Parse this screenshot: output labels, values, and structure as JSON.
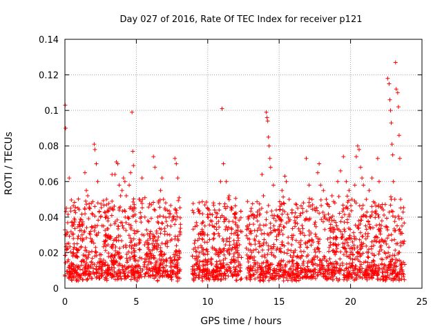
{
  "chart_data": {
    "type": "scatter",
    "title": "Day 027 of 2016, Rate Of TEC Index for receiver p121",
    "xlabel": "GPS time / hours",
    "ylabel": "ROTI / TECUs",
    "xlim": [
      0,
      25
    ],
    "ylim": [
      0,
      0.14
    ],
    "grid": true,
    "marker": "+",
    "color": "#ff0000",
    "xticks": [
      {
        "value": 0,
        "label": "0"
      },
      {
        "value": 5,
        "label": "5"
      },
      {
        "value": 10,
        "label": "10"
      },
      {
        "value": 15,
        "label": "15"
      },
      {
        "value": 20,
        "label": "20"
      },
      {
        "value": 25,
        "label": "25"
      }
    ],
    "yticks": [
      {
        "value": 0,
        "label": "0"
      },
      {
        "value": 0.02,
        "label": "0.02"
      },
      {
        "value": 0.04,
        "label": "0.04"
      },
      {
        "value": 0.06,
        "label": "0.06"
      },
      {
        "value": 0.08,
        "label": "0.08"
      },
      {
        "value": 0.1,
        "label": "0.1"
      },
      {
        "value": 0.12,
        "label": "0.12"
      },
      {
        "value": 0.14,
        "label": "0.14"
      }
    ],
    "data_gaps_hours": [
      [
        8.1,
        8.9
      ],
      [
        12.4,
        12.7
      ],
      [
        23.8,
        25
      ]
    ],
    "points": [
      [
        0.02,
        0.103
      ],
      [
        0.05,
        0.09
      ],
      [
        0.1,
        0.045
      ],
      [
        0.15,
        0.025
      ],
      [
        0.2,
        0.015
      ],
      [
        0.3,
        0.062
      ],
      [
        0.4,
        0.045
      ],
      [
        0.5,
        0.035
      ],
      [
        0.6,
        0.022
      ],
      [
        0.7,
        0.012
      ],
      [
        0.8,
        0.018
      ],
      [
        0.9,
        0.028
      ],
      [
        1.2,
        0.03
      ],
      [
        1.4,
        0.065
      ],
      [
        1.5,
        0.055
      ],
      [
        1.6,
        0.052
      ],
      [
        1.7,
        0.045
      ],
      [
        1.8,
        0.032
      ],
      [
        1.9,
        0.042
      ],
      [
        2.05,
        0.081
      ],
      [
        2.1,
        0.078
      ],
      [
        2.2,
        0.07
      ],
      [
        2.3,
        0.06
      ],
      [
        2.5,
        0.04
      ],
      [
        2.7,
        0.035
      ],
      [
        2.9,
        0.03
      ],
      [
        3.1,
        0.045
      ],
      [
        3.3,
        0.064
      ],
      [
        3.5,
        0.064
      ],
      [
        3.6,
        0.071
      ],
      [
        3.7,
        0.07
      ],
      [
        3.8,
        0.058
      ],
      [
        3.9,
        0.052
      ],
      [
        4.0,
        0.055
      ],
      [
        4.1,
        0.062
      ],
      [
        4.2,
        0.06
      ],
      [
        4.3,
        0.052
      ],
      [
        4.4,
        0.04
      ],
      [
        4.5,
        0.058
      ],
      [
        4.6,
        0.065
      ],
      [
        4.7,
        0.099
      ],
      [
        4.75,
        0.077
      ],
      [
        4.8,
        0.069
      ],
      [
        4.9,
        0.045
      ],
      [
        5.2,
        0.05
      ],
      [
        5.4,
        0.062
      ],
      [
        5.6,
        0.04
      ],
      [
        5.8,
        0.038
      ],
      [
        6.0,
        0.032
      ],
      [
        6.2,
        0.074
      ],
      [
        6.3,
        0.068
      ],
      [
        6.5,
        0.04
      ],
      [
        6.7,
        0.055
      ],
      [
        6.8,
        0.062
      ],
      [
        6.9,
        0.05
      ],
      [
        7.0,
        0.045
      ],
      [
        7.3,
        0.042
      ],
      [
        7.5,
        0.038
      ],
      [
        7.7,
        0.073
      ],
      [
        7.8,
        0.07
      ],
      [
        7.9,
        0.062
      ],
      [
        9.0,
        0.022
      ],
      [
        9.2,
        0.018
      ],
      [
        9.4,
        0.028
      ],
      [
        9.6,
        0.032
      ],
      [
        9.8,
        0.035
      ],
      [
        10.0,
        0.04
      ],
      [
        10.2,
        0.038
      ],
      [
        10.4,
        0.048
      ],
      [
        10.6,
        0.04
      ],
      [
        10.8,
        0.044
      ],
      [
        10.9,
        0.06
      ],
      [
        11.0,
        0.101
      ],
      [
        11.1,
        0.07
      ],
      [
        11.3,
        0.06
      ],
      [
        11.5,
        0.052
      ],
      [
        11.7,
        0.045
      ],
      [
        11.9,
        0.04
      ],
      [
        12.1,
        0.035
      ],
      [
        12.3,
        0.032
      ],
      [
        12.8,
        0.028
      ],
      [
        13.0,
        0.032
      ],
      [
        13.2,
        0.036
      ],
      [
        13.4,
        0.04
      ],
      [
        13.6,
        0.044
      ],
      [
        13.8,
        0.064
      ],
      [
        13.9,
        0.052
      ],
      [
        14.1,
        0.099
      ],
      [
        14.15,
        0.096
      ],
      [
        14.2,
        0.094
      ],
      [
        14.25,
        0.085
      ],
      [
        14.3,
        0.08
      ],
      [
        14.35,
        0.073
      ],
      [
        14.4,
        0.068
      ],
      [
        14.6,
        0.058
      ],
      [
        14.8,
        0.044
      ],
      [
        15.0,
        0.04
      ],
      [
        15.2,
        0.055
      ],
      [
        15.4,
        0.063
      ],
      [
        15.5,
        0.06
      ],
      [
        15.7,
        0.05
      ],
      [
        15.9,
        0.044
      ],
      [
        16.1,
        0.038
      ],
      [
        16.3,
        0.045
      ],
      [
        16.5,
        0.042
      ],
      [
        16.7,
        0.048
      ],
      [
        16.9,
        0.073
      ],
      [
        17.1,
        0.058
      ],
      [
        17.3,
        0.05
      ],
      [
        17.5,
        0.045
      ],
      [
        17.7,
        0.065
      ],
      [
        17.8,
        0.07
      ],
      [
        17.9,
        0.058
      ],
      [
        18.1,
        0.055
      ],
      [
        18.3,
        0.05
      ],
      [
        18.5,
        0.046
      ],
      [
        18.7,
        0.052
      ],
      [
        18.9,
        0.048
      ],
      [
        19.1,
        0.06
      ],
      [
        19.3,
        0.066
      ],
      [
        19.5,
        0.074
      ],
      [
        19.7,
        0.06
      ],
      [
        19.9,
        0.055
      ],
      [
        20.1,
        0.05
      ],
      [
        20.3,
        0.058
      ],
      [
        20.4,
        0.074
      ],
      [
        20.5,
        0.08
      ],
      [
        20.6,
        0.078
      ],
      [
        20.7,
        0.068
      ],
      [
        20.8,
        0.062
      ],
      [
        20.9,
        0.058
      ],
      [
        21.1,
        0.05
      ],
      [
        21.3,
        0.055
      ],
      [
        21.5,
        0.062
      ],
      [
        21.7,
        0.048
      ],
      [
        21.9,
        0.073
      ],
      [
        22.0,
        0.06
      ],
      [
        22.2,
        0.045
      ],
      [
        22.6,
        0.118
      ],
      [
        22.7,
        0.115
      ],
      [
        22.75,
        0.106
      ],
      [
        22.8,
        0.1
      ],
      [
        22.85,
        0.093
      ],
      [
        22.9,
        0.081
      ],
      [
        22.95,
        0.075
      ],
      [
        23.0,
        0.06
      ],
      [
        23.1,
        0.05
      ],
      [
        23.15,
        0.127
      ],
      [
        23.2,
        0.112
      ],
      [
        23.3,
        0.11
      ],
      [
        23.35,
        0.102
      ],
      [
        23.4,
        0.086
      ],
      [
        23.45,
        0.073
      ],
      [
        23.5,
        0.05
      ],
      [
        23.6,
        0.035
      ],
      [
        23.7,
        0.025
      ]
    ]
  }
}
